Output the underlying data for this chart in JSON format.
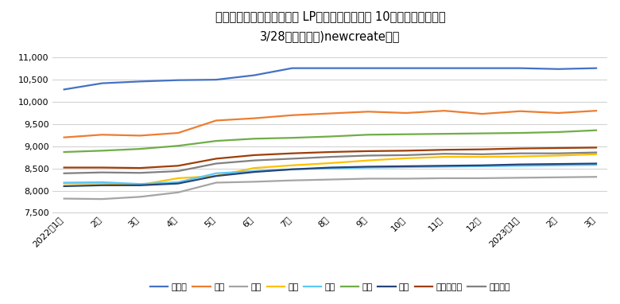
{
  "title_line1": "エネ研・石油情報センター LPガス平均小売価格 10㎥使用時の請求額",
  "title_line2": "3/28時点　（株)newcreate作成",
  "x_labels": [
    "2022年1月",
    "2月",
    "3月",
    "4月",
    "5月",
    "6月",
    "7月",
    "8月",
    "9月",
    "10月",
    "11月",
    "12月",
    "2023年1月",
    "2月",
    "3月"
  ],
  "series": [
    {
      "name": "北海道",
      "color": "#4472C4",
      "values": [
        10280,
        10420,
        10460,
        10490,
        10500,
        10600,
        10760,
        10760,
        10760,
        10760,
        10760,
        10760,
        10760,
        10740,
        10760
      ]
    },
    {
      "name": "東北",
      "color": "#ED7D31",
      "values": [
        9200,
        9260,
        9240,
        9300,
        9580,
        9630,
        9700,
        9740,
        9780,
        9750,
        9800,
        9730,
        9790,
        9750,
        9800
      ]
    },
    {
      "name": "関東",
      "color": "#A5A5A5",
      "values": [
        7820,
        7810,
        7860,
        7960,
        8180,
        8200,
        8230,
        8250,
        8270,
        8270,
        8280,
        8280,
        8290,
        8300,
        8310
      ]
    },
    {
      "name": "中部",
      "color": "#FFC000",
      "values": [
        8160,
        8160,
        8130,
        8280,
        8330,
        8510,
        8570,
        8620,
        8680,
        8730,
        8760,
        8760,
        8770,
        8790,
        8820
      ]
    },
    {
      "name": "近畿",
      "color": "#5BC8F5",
      "values": [
        8180,
        8190,
        8150,
        8190,
        8390,
        8440,
        8480,
        8500,
        8520,
        8530,
        8540,
        8550,
        8560,
        8570,
        8580
      ]
    },
    {
      "name": "中国",
      "color": "#70AD47",
      "values": [
        8870,
        8900,
        8940,
        9010,
        9120,
        9170,
        9190,
        9220,
        9260,
        9270,
        9280,
        9290,
        9300,
        9320,
        9360
      ]
    },
    {
      "name": "四国",
      "color": "#264478",
      "values": [
        8100,
        8120,
        8120,
        8160,
        8330,
        8420,
        8480,
        8520,
        8540,
        8550,
        8560,
        8570,
        8590,
        8600,
        8610
      ]
    },
    {
      "name": "九州・沖縄",
      "color": "#9E3E08",
      "values": [
        8520,
        8520,
        8510,
        8560,
        8720,
        8800,
        8840,
        8870,
        8890,
        8900,
        8920,
        8930,
        8950,
        8960,
        8970
      ]
    },
    {
      "name": "全国平均",
      "color": "#808080",
      "values": [
        8390,
        8410,
        8400,
        8440,
        8610,
        8680,
        8720,
        8760,
        8790,
        8800,
        8830,
        8820,
        8840,
        8840,
        8860
      ]
    }
  ],
  "ylim": [
    7500,
    11200
  ],
  "yticks": [
    7500,
    8000,
    8500,
    9000,
    9500,
    10000,
    10500,
    11000
  ],
  "background_color": "#FFFFFF",
  "grid_color": "#D3D3D3",
  "title_fontsize": 10.5,
  "subtitle_fontsize": 10,
  "tick_fontsize": 8,
  "legend_fontsize": 8
}
